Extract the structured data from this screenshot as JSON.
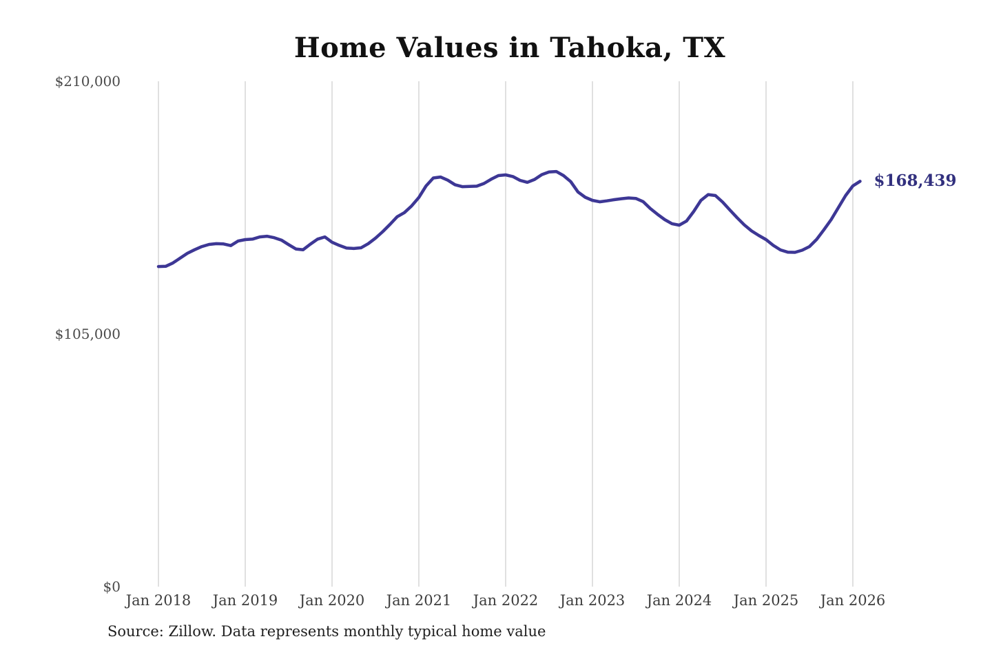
{
  "title": "Home Values in Tahoka, TX",
  "end_label": "$168,439",
  "source": "Source: Zillow. Data represents monthly typical home value",
  "colors": {
    "line": "#3d3795",
    "end_label": "#32307e",
    "gridline": "#cccccc",
    "title": "#111111",
    "axis_text": "#444444",
    "source_text": "#1f1f1f"
  },
  "chart_data": {
    "type": "line",
    "title": "Home Values in Tahoka, TX",
    "xlabel": "",
    "ylabel": "",
    "unit": "USD",
    "grid": "vertical-only",
    "legend": "none",
    "x_ticks": [
      "Jan 2018",
      "Jan 2019",
      "Jan 2020",
      "Jan 2021",
      "Jan 2022",
      "Jan 2023",
      "Jan 2024",
      "Jan 2025",
      "Jan 2026"
    ],
    "y_ticks": [
      "$0",
      "$105,000",
      "$210,000"
    ],
    "y_tick_values": [
      0,
      105000,
      210000
    ],
    "ylim": [
      0,
      210000
    ],
    "series": [
      {
        "name": "Monthly typical home value",
        "start_month": "2018-01",
        "end_month": "2026-02",
        "end_value": 168439,
        "values": [
          133000,
          133100,
          134500,
          136500,
          138500,
          140000,
          141300,
          142200,
          142500,
          142400,
          141700,
          143600,
          144200,
          144400,
          145300,
          145600,
          145000,
          144000,
          142100,
          140300,
          140000,
          142300,
          144400,
          145300,
          143100,
          141800,
          140700,
          140500,
          140800,
          142500,
          144800,
          147500,
          150500,
          153700,
          155400,
          158200,
          161700,
          166500,
          169800,
          170200,
          168900,
          167000,
          166200,
          166300,
          166400,
          167500,
          169300,
          170800,
          171100,
          170400,
          168800,
          168000,
          169200,
          171200,
          172300,
          172500,
          170800,
          168300,
          164000,
          161800,
          160500,
          159900,
          160300,
          160800,
          161200,
          161500,
          161300,
          160000,
          157100,
          154700,
          152500,
          150800,
          150200,
          151900,
          155900,
          160500,
          162900,
          162500,
          159800,
          156500,
          153300,
          150300,
          147800,
          145900,
          144200,
          141800,
          139900,
          139000,
          138900,
          139800,
          141300,
          144300,
          148300,
          152500,
          157500,
          162500,
          166500,
          168439
        ]
      }
    ]
  }
}
